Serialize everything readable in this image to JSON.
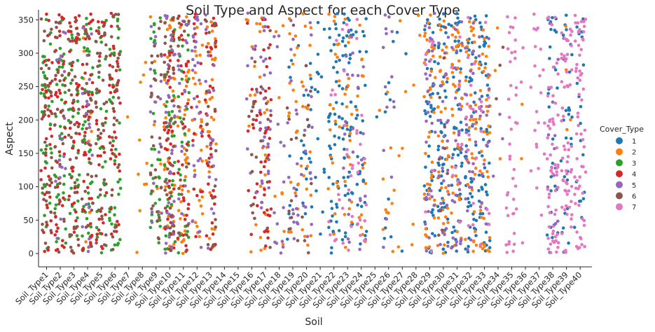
{
  "chart_data": {
    "type": "scatter",
    "title": "Soil Type and Aspect for each Cover Type",
    "xlabel": "Soil",
    "ylabel": "Aspect",
    "ylim": [
      -20,
      365
    ],
    "yticks": [
      0,
      50,
      100,
      150,
      200,
      250,
      300,
      350
    ],
    "categories": [
      "Soil_Type1",
      "Soil_Type2",
      "Soil_Type3",
      "Soil_Type4",
      "Soil_Type5",
      "Soil_Type6",
      "Soil_Type7",
      "Soil_Type8",
      "Soil_Type9",
      "Soil_Type10",
      "Soil_Type11",
      "Soil_Type12",
      "Soil_Type13",
      "Soil_Type14",
      "Soil_Type15",
      "Soil_Type16",
      "Soil_Type17",
      "Soil_Type18",
      "Soil_Type19",
      "Soil_Type20",
      "Soil_Type21",
      "Soil_Type22",
      "Soil_Type23",
      "Soil_Type24",
      "Soil_Type25",
      "Soil_Type26",
      "Soil_Type27",
      "Soil_Type28",
      "Soil_Type29",
      "Soil_Type30",
      "Soil_Type31",
      "Soil_Type32",
      "Soil_Type33",
      "Soil_Type34",
      "Soil_Type35",
      "Soil_Type36",
      "Soil_Type37",
      "Soil_Type38",
      "Soil_Type39",
      "Soil_Type40"
    ],
    "legend_title": "Cover_Type",
    "legend_position": "right",
    "series": [
      {
        "name": "1",
        "color": "#1f77b4"
      },
      {
        "name": "2",
        "color": "#ff7f0e"
      },
      {
        "name": "3",
        "color": "#2ca02c"
      },
      {
        "name": "4",
        "color": "#d62728"
      },
      {
        "name": "5",
        "color": "#9467bd"
      },
      {
        "name": "6",
        "color": "#8c564b"
      },
      {
        "name": "7",
        "color": "#e377c2"
      }
    ],
    "density": {
      "Soil_Type1": {
        "3": 40,
        "4": 40,
        "6": 40
      },
      "Soil_Type2": {
        "3": 40,
        "4": 40,
        "5": 20,
        "6": 30
      },
      "Soil_Type3": {
        "3": 40,
        "4": 45,
        "6": 40
      },
      "Soil_Type4": {
        "2": 10,
        "3": 40,
        "4": 45,
        "5": 20,
        "6": 30
      },
      "Soil_Type5": {
        "3": 30,
        "4": 30,
        "6": 40
      },
      "Soil_Type6": {
        "3": 40,
        "4": 40,
        "6": 30
      },
      "Soil_Type7": {
        "2": 1
      },
      "Soil_Type8": {
        "2": 10
      },
      "Soil_Type9": {
        "2": 10,
        "3": 30,
        "5": 20,
        "6": 30
      },
      "Soil_Type10": {
        "2": 40,
        "3": 40,
        "4": 40,
        "5": 40,
        "6": 40
      },
      "Soil_Type11": {
        "2": 40,
        "3": 30,
        "4": 30,
        "5": 20,
        "6": 20
      },
      "Soil_Type12": {
        "2": 30,
        "4": 20,
        "5": 30
      },
      "Soil_Type13": {
        "2": 30,
        "4": 40,
        "5": 20,
        "6": 20
      },
      "Soil_Type14": {},
      "Soil_Type15": {},
      "Soil_Type16": {
        "2": 10,
        "4": 15,
        "5": 10,
        "6": 15
      },
      "Soil_Type17": {
        "2": 20,
        "4": 40,
        "5": 30,
        "6": 10
      },
      "Soil_Type18": {
        "2": 8,
        "5": 15
      },
      "Soil_Type19": {
        "1": 10,
        "2": 20,
        "5": 20,
        "6": 10
      },
      "Soil_Type20": {
        "1": 20,
        "2": 20,
        "5": 15,
        "6": 10
      },
      "Soil_Type21": {
        "1": 15
      },
      "Soil_Type22": {
        "1": 50,
        "2": 20,
        "7": 10
      },
      "Soil_Type23": {
        "1": 50,
        "2": 20,
        "5": 15,
        "7": 15
      },
      "Soil_Type24": {
        "1": 30,
        "2": 15,
        "5": 10,
        "7": 15
      },
      "Soil_Type25": {
        "1": 1,
        "2": 1
      },
      "Soil_Type26": {
        "1": 10,
        "2": 10,
        "5": 15
      },
      "Soil_Type27": {
        "1": 3,
        "2": 5
      },
      "Soil_Type28": {
        "2": 5
      },
      "Soil_Type29": {
        "1": 50,
        "2": 40,
        "5": 30,
        "7": 10
      },
      "Soil_Type30": {
        "1": 50,
        "2": 40,
        "5": 30,
        "6": 10
      },
      "Soil_Type31": {
        "1": 50,
        "2": 40,
        "5": 30,
        "7": 10
      },
      "Soil_Type32": {
        "1": 50,
        "2": 40,
        "5": 30,
        "7": 15
      },
      "Soil_Type33": {
        "1": 50,
        "2": 40,
        "5": 20,
        "7": 10
      },
      "Soil_Type34": {
        "2": 3,
        "5": 3,
        "6": 3
      },
      "Soil_Type35": {
        "7": 40
      },
      "Soil_Type36": {
        "2": 2,
        "7": 5
      },
      "Soil_Type37": {
        "7": 20
      },
      "Soil_Type38": {
        "1": 30,
        "5": 10,
        "7": 60
      },
      "Soil_Type39": {
        "1": 30,
        "2": 5,
        "7": 60
      },
      "Soil_Type40": {
        "1": 20,
        "7": 60
      }
    }
  }
}
